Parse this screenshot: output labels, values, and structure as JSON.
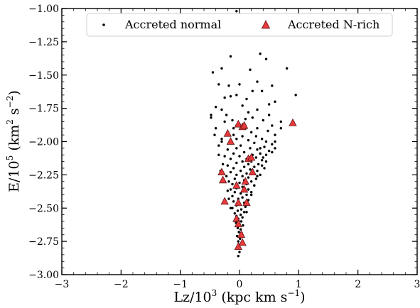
{
  "chart_data": {
    "type": "scatter",
    "xlabel": "Lz/10",
    "xlabel_exp": "3",
    "xlabel_unit": " (kpc km s",
    "xlabel_unit_exp": "−1",
    "xlabel_close": ")",
    "ylabel": "E/10",
    "ylabel_exp": "5",
    "ylabel_unit": " (km",
    "ylabel_unit_exp1": "2",
    "ylabel_mid": " s",
    "ylabel_unit_exp2": "−2",
    "ylabel_close": ")",
    "xlim": [
      -3,
      3
    ],
    "ylim": [
      -3.0,
      -1.0
    ],
    "xticks": [
      -3,
      -2,
      -1,
      0,
      1,
      2,
      3
    ],
    "xtick_labels": [
      "−3",
      "−2",
      "−1",
      "0",
      "1",
      "2",
      "3"
    ],
    "yticks": [
      -3.0,
      -2.75,
      -2.5,
      -2.25,
      -2.0,
      -1.75,
      -1.5,
      -1.25,
      -1.0
    ],
    "ytick_labels": [
      "−3.00",
      "−2.75",
      "−2.50",
      "−2.25",
      "−2.00",
      "−1.75",
      "−1.50",
      "−1.25",
      "−1.00"
    ],
    "grid": false,
    "legend_placement": "top-center",
    "series": [
      {
        "name": "Accreted normal",
        "marker": "dot",
        "color": "#000000",
        "points": [
          [
            -0.05,
            -1.02
          ],
          [
            0.35,
            -1.34
          ],
          [
            -0.15,
            -1.36
          ],
          [
            0.45,
            -1.38
          ],
          [
            -0.45,
            -1.48
          ],
          [
            -0.3,
            -1.45
          ],
          [
            0.18,
            -1.46
          ],
          [
            0.8,
            -1.45
          ],
          [
            0.3,
            -1.55
          ],
          [
            -0.35,
            -1.57
          ],
          [
            0.0,
            -1.57
          ],
          [
            0.55,
            -1.58
          ],
          [
            0.95,
            -1.65
          ],
          [
            -0.05,
            -1.65
          ],
          [
            0.38,
            -1.62
          ],
          [
            -0.25,
            -1.67
          ],
          [
            -0.15,
            -1.66
          ],
          [
            0.12,
            -1.68
          ],
          [
            0.6,
            -1.7
          ],
          [
            -0.4,
            -1.74
          ],
          [
            0.05,
            -1.73
          ],
          [
            0.3,
            -1.76
          ],
          [
            -0.3,
            -1.76
          ],
          [
            0.15,
            -1.78
          ],
          [
            -0.48,
            -1.8
          ],
          [
            0.5,
            -1.8
          ],
          [
            -0.48,
            -1.82
          ],
          [
            0.22,
            -1.82
          ],
          [
            -0.12,
            -1.84
          ],
          [
            0.4,
            -1.84
          ],
          [
            0.7,
            -1.85
          ],
          [
            -0.25,
            -1.85
          ],
          [
            0.55,
            -1.88
          ],
          [
            0.1,
            -1.9
          ],
          [
            -0.4,
            -1.9
          ],
          [
            0.3,
            -1.9
          ],
          [
            0.48,
            -1.92
          ],
          [
            0.2,
            -1.93
          ],
          [
            -0.1,
            -1.95
          ],
          [
            0.6,
            -1.95
          ],
          [
            0.05,
            -1.96
          ],
          [
            -0.3,
            -1.98
          ],
          [
            0.38,
            -1.98
          ],
          [
            0.15,
            -1.99
          ],
          [
            0.45,
            -2.0
          ],
          [
            -0.15,
            -2.01
          ],
          [
            0.25,
            -2.01
          ],
          [
            0.55,
            -2.02
          ],
          [
            0.02,
            -2.03
          ],
          [
            -0.35,
            -2.03
          ],
          [
            0.42,
            -2.04
          ],
          [
            0.18,
            -2.05
          ],
          [
            -0.05,
            -2.05
          ],
          [
            0.6,
            -2.05
          ],
          [
            0.3,
            -2.06
          ],
          [
            -0.2,
            -2.06
          ],
          [
            0.5,
            -2.07
          ],
          [
            0.08,
            -2.08
          ],
          [
            -0.1,
            -2.09
          ],
          [
            0.35,
            -2.09
          ],
          [
            0.22,
            -2.1
          ],
          [
            0.45,
            -2.1
          ],
          [
            -0.25,
            -2.11
          ],
          [
            0.0,
            -2.11
          ],
          [
            0.28,
            -2.12
          ],
          [
            0.12,
            -2.13
          ],
          [
            -0.15,
            -2.13
          ],
          [
            0.38,
            -2.14
          ],
          [
            0.05,
            -2.15
          ],
          [
            0.2,
            -2.15
          ],
          [
            -0.05,
            -2.16
          ],
          [
            0.32,
            -2.17
          ],
          [
            0.15,
            -2.17
          ],
          [
            -0.2,
            -2.18
          ],
          [
            0.08,
            -2.19
          ],
          [
            0.25,
            -2.19
          ],
          [
            0.42,
            -2.2
          ],
          [
            -0.1,
            -2.2
          ],
          [
            0.18,
            -2.21
          ],
          [
            0.02,
            -2.22
          ],
          [
            0.3,
            -2.22
          ],
          [
            -0.15,
            -2.23
          ],
          [
            0.12,
            -2.24
          ],
          [
            0.22,
            -2.24
          ],
          [
            -0.05,
            -2.25
          ],
          [
            0.35,
            -2.25
          ],
          [
            0.05,
            -2.26
          ],
          [
            -0.22,
            -2.26
          ],
          [
            0.15,
            -2.27
          ],
          [
            0.28,
            -2.28
          ],
          [
            -0.08,
            -2.28
          ],
          [
            0.08,
            -2.29
          ],
          [
            0.2,
            -2.3
          ],
          [
            -0.18,
            -2.3
          ],
          [
            0.0,
            -2.31
          ],
          [
            0.12,
            -2.32
          ],
          [
            -0.12,
            -2.32
          ],
          [
            0.25,
            -2.33
          ],
          [
            0.05,
            -2.34
          ],
          [
            -0.05,
            -2.35
          ],
          [
            0.15,
            -2.36
          ],
          [
            -0.15,
            -2.36
          ],
          [
            0.08,
            -2.37
          ],
          [
            0.2,
            -2.38
          ],
          [
            -0.08,
            -2.38
          ],
          [
            0.02,
            -2.39
          ],
          [
            0.12,
            -2.4
          ],
          [
            -0.12,
            -2.41
          ],
          [
            0.05,
            -2.42
          ],
          [
            -0.02,
            -2.43
          ],
          [
            0.15,
            -2.44
          ],
          [
            -0.1,
            -2.45
          ],
          [
            0.08,
            -2.46
          ],
          [
            0.0,
            -2.47
          ],
          [
            -0.05,
            -2.48
          ],
          [
            0.1,
            -2.49
          ],
          [
            -0.12,
            -2.5
          ],
          [
            0.03,
            -2.51
          ],
          [
            -0.03,
            -2.52
          ],
          [
            0.08,
            -2.53
          ],
          [
            -0.08,
            -2.54
          ],
          [
            0.02,
            -2.55
          ],
          [
            -0.05,
            -2.56
          ],
          [
            0.05,
            -2.57
          ],
          [
            -0.02,
            -2.58
          ],
          [
            0.03,
            -2.6
          ],
          [
            -0.06,
            -2.61
          ],
          [
            0.0,
            -2.62
          ],
          [
            0.06,
            -2.63
          ],
          [
            -0.03,
            -2.65
          ],
          [
            0.02,
            -2.66
          ],
          [
            -0.01,
            -2.68
          ],
          [
            0.04,
            -2.69
          ],
          [
            -0.04,
            -2.71
          ],
          [
            0.01,
            -2.73
          ],
          [
            -0.02,
            -2.75
          ],
          [
            0.02,
            -2.77
          ],
          [
            -0.01,
            -2.8
          ],
          [
            0.0,
            -2.83
          ],
          [
            -0.02,
            -2.86
          ],
          [
            -0.3,
            -2.0
          ],
          [
            -0.35,
            -2.1
          ],
          [
            -0.28,
            -2.17
          ],
          [
            -0.32,
            -2.22
          ],
          [
            -0.25,
            -2.3
          ],
          [
            -0.2,
            -2.37
          ],
          [
            -0.18,
            -2.43
          ],
          [
            -0.15,
            -2.5
          ],
          [
            0.35,
            -2.05
          ],
          [
            0.4,
            -2.12
          ],
          [
            0.38,
            -2.18
          ],
          [
            0.3,
            -2.26
          ],
          [
            0.25,
            -2.33
          ],
          [
            0.2,
            -2.4
          ],
          [
            0.15,
            -2.47
          ],
          [
            0.12,
            -2.53
          ],
          [
            -0.05,
            -1.88
          ],
          [
            0.0,
            -1.87
          ],
          [
            0.08,
            -1.88
          ],
          [
            -0.1,
            -1.9
          ],
          [
            0.6,
            -2.0
          ],
          [
            0.55,
            -2.08
          ],
          [
            -0.42,
            -1.95
          ],
          [
            0.7,
            -1.9
          ],
          [
            -0.18,
            -1.58
          ],
          [
            0.22,
            -1.62
          ],
          [
            0.5,
            -1.72
          ],
          [
            -0.22,
            -1.8
          ],
          [
            0.1,
            -1.83
          ],
          [
            -0.05,
            -1.98
          ],
          [
            0.28,
            -1.96
          ],
          [
            0.45,
            -2.15
          ]
        ]
      },
      {
        "name": "Accreted N-rich",
        "marker": "triangle",
        "color": "#e8393b",
        "points": [
          [
            -0.02,
            -1.87
          ],
          [
            0.05,
            -1.89
          ],
          [
            0.08,
            -1.88
          ],
          [
            -0.2,
            -1.94
          ],
          [
            0.9,
            -1.86
          ],
          [
            -0.15,
            -2.0
          ],
          [
            0.15,
            -2.13
          ],
          [
            0.2,
            -2.12
          ],
          [
            -0.3,
            -2.23
          ],
          [
            0.22,
            -2.23
          ],
          [
            -0.28,
            -2.29
          ],
          [
            0.1,
            -2.3
          ],
          [
            -0.05,
            -2.33
          ],
          [
            0.08,
            -2.36
          ],
          [
            -0.25,
            -2.45
          ],
          [
            0.12,
            -2.46
          ],
          [
            -0.02,
            -2.46
          ],
          [
            -0.05,
            -2.58
          ],
          [
            -0.02,
            -2.62
          ],
          [
            0.03,
            -2.7
          ],
          [
            0.05,
            -2.76
          ],
          [
            -0.02,
            -2.79
          ]
        ]
      }
    ]
  }
}
